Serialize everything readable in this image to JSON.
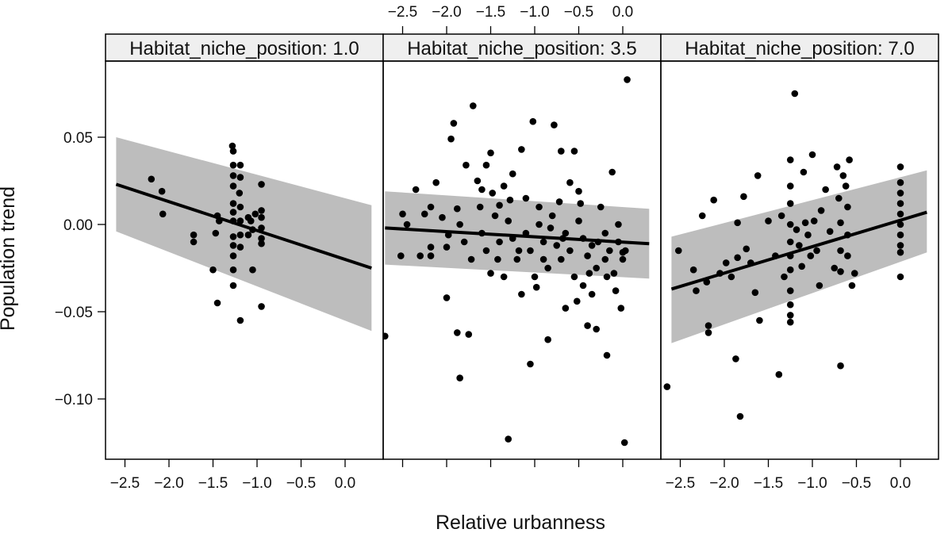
{
  "chart_data": {
    "type": "scatter",
    "layout": "lattice 3 panels side by side, shared y axis",
    "xlabel": "Relative urbanness",
    "ylabel": "Population trend",
    "xlim": [
      -2.85,
      0.45
    ],
    "ylim": [
      -0.135,
      0.095
    ],
    "x_ticks": [
      -2.5,
      -2.0,
      -1.5,
      -1.0,
      -0.5,
      0.0
    ],
    "x_tick_labels": [
      "−2.5",
      "−2.0",
      "−1.5",
      "−1.0",
      "−0.5",
      "0.0"
    ],
    "y_ticks": [
      0.05,
      0.0,
      -0.05,
      -0.1
    ],
    "y_tick_labels": [
      "0.05",
      "0.00",
      "−0.05",
      "−0.10"
    ],
    "panels": [
      {
        "strip": "Habitat_niche_position: 1.0",
        "fit": {
          "x": [
            -2.6,
            0.3
          ],
          "y": [
            0.023,
            -0.025
          ]
        },
        "band": {
          "x": [
            -2.6,
            0.3
          ],
          "lower": [
            -0.004,
            -0.061
          ],
          "upper": [
            0.05,
            0.011
          ]
        },
        "points": [
          [
            -2.2,
            0.026
          ],
          [
            -2.08,
            0.019
          ],
          [
            -2.07,
            0.006
          ],
          [
            -1.72,
            -0.006
          ],
          [
            -1.72,
            -0.01
          ],
          [
            -1.5,
            -0.026
          ],
          [
            -1.47,
            -0.005
          ],
          [
            -1.45,
            0.005
          ],
          [
            -1.45,
            -0.045
          ],
          [
            -1.43,
            0.002
          ],
          [
            -1.28,
            0.045
          ],
          [
            -1.27,
            0.042
          ],
          [
            -1.27,
            0.034
          ],
          [
            -1.27,
            0.028
          ],
          [
            -1.27,
            0.022
          ],
          [
            -1.27,
            0.012
          ],
          [
            -1.27,
            0.007
          ],
          [
            -1.27,
            0.002
          ],
          [
            -1.27,
            -0.007
          ],
          [
            -1.27,
            -0.012
          ],
          [
            -1.27,
            -0.018
          ],
          [
            -1.27,
            -0.026
          ],
          [
            -1.27,
            -0.035
          ],
          [
            -1.2,
            0.018
          ],
          [
            -1.19,
            0.034
          ],
          [
            -1.19,
            0.027
          ],
          [
            -1.19,
            0.01
          ],
          [
            -1.19,
            0.002
          ],
          [
            -1.19,
            -0.006
          ],
          [
            -1.19,
            -0.013
          ],
          [
            -1.19,
            -0.055
          ],
          [
            -1.1,
            0.004
          ],
          [
            -1.1,
            -0.006
          ],
          [
            -1.07,
            0.002
          ],
          [
            -1.05,
            -0.003
          ],
          [
            -1.05,
            -0.026
          ],
          [
            -1.02,
            0.006
          ],
          [
            -0.95,
            0.023
          ],
          [
            -0.95,
            0.008
          ],
          [
            -0.95,
            0.004
          ],
          [
            -0.95,
            -0.002
          ],
          [
            -0.95,
            -0.008
          ],
          [
            -0.95,
            -0.011
          ],
          [
            -0.95,
            -0.047
          ]
        ]
      },
      {
        "strip": "Habitat_niche_position: 3.5",
        "fit": {
          "x": [
            -2.7,
            0.3
          ],
          "y": [
            -0.002,
            -0.011
          ]
        },
        "band": {
          "x": [
            -2.7,
            0.3
          ],
          "lower": [
            -0.023,
            -0.031
          ],
          "upper": [
            0.019,
            0.009
          ]
        },
        "points": [
          [
            -2.7,
            -0.064
          ],
          [
            -2.45,
            0.0
          ],
          [
            -2.5,
            0.006
          ],
          [
            -2.52,
            -0.018
          ],
          [
            -2.35,
            0.02
          ],
          [
            -2.25,
            0.006
          ],
          [
            -2.18,
            0.01
          ],
          [
            -2.18,
            -0.013
          ],
          [
            -2.18,
            -0.018
          ],
          [
            -2.12,
            0.024
          ],
          [
            -2.0,
            -0.013
          ],
          [
            -2.0,
            -0.042
          ],
          [
            -1.95,
            0.049
          ],
          [
            -1.92,
            0.058
          ],
          [
            -1.88,
            0.009
          ],
          [
            -1.88,
            -0.062
          ],
          [
            -1.85,
            -0.088
          ],
          [
            -1.78,
            0.034
          ],
          [
            -1.75,
            -0.063
          ],
          [
            -1.7,
            0.068
          ],
          [
            -1.65,
            0.025
          ],
          [
            -1.6,
            0.02
          ],
          [
            -1.55,
            0.034
          ],
          [
            -1.5,
            0.041
          ],
          [
            -1.48,
            0.018
          ],
          [
            -1.4,
            0.011
          ],
          [
            -1.35,
            0.022
          ],
          [
            -1.3,
            -0.123
          ],
          [
            -1.25,
            0.029
          ],
          [
            -1.15,
            0.043
          ],
          [
            -1.1,
            0.015
          ],
          [
            -1.05,
            -0.08
          ],
          [
            -1.02,
            0.059
          ],
          [
            -0.95,
            0.01
          ],
          [
            -0.9,
            -0.02
          ],
          [
            -0.85,
            -0.066
          ],
          [
            -0.78,
            0.057
          ],
          [
            -0.72,
            0.013
          ],
          [
            -0.7,
            0.042
          ],
          [
            -0.65,
            -0.048
          ],
          [
            -0.6,
            0.024
          ],
          [
            -0.55,
            0.042
          ],
          [
            -0.5,
            0.019
          ],
          [
            -0.45,
            -0.035
          ],
          [
            -0.4,
            -0.058
          ],
          [
            -0.35,
            -0.04
          ],
          [
            -0.3,
            -0.06
          ],
          [
            -0.25,
            0.01
          ],
          [
            -0.2,
            -0.02
          ],
          [
            -0.18,
            -0.075
          ],
          [
            -0.12,
            0.03
          ],
          [
            -0.05,
            0.0
          ],
          [
            0.0,
            -0.016
          ],
          [
            0.02,
            -0.125
          ],
          [
            0.05,
            0.083
          ],
          [
            -1.85,
            0.0
          ],
          [
            -1.8,
            -0.01
          ],
          [
            -1.72,
            -0.02
          ],
          [
            -1.6,
            -0.005
          ],
          [
            -1.55,
            -0.015
          ],
          [
            -1.5,
            -0.028
          ],
          [
            -1.45,
            0.005
          ],
          [
            -1.4,
            -0.01
          ],
          [
            -1.35,
            -0.03
          ],
          [
            -1.3,
            0.002
          ],
          [
            -1.25,
            -0.008
          ],
          [
            -1.2,
            -0.02
          ],
          [
            -1.15,
            -0.04
          ],
          [
            -1.1,
            -0.005
          ],
          [
            -1.05,
            -0.015
          ],
          [
            -1.0,
            -0.03
          ],
          [
            -0.95,
            0.0
          ],
          [
            -0.9,
            -0.01
          ],
          [
            -0.85,
            -0.025
          ],
          [
            -0.8,
            0.005
          ],
          [
            -0.75,
            -0.012
          ],
          [
            -0.7,
            -0.02
          ],
          [
            -0.65,
            -0.005
          ],
          [
            -0.6,
            -0.015
          ],
          [
            -0.55,
            -0.03
          ],
          [
            -0.5,
            0.002
          ],
          [
            -0.45,
            -0.008
          ],
          [
            -0.4,
            -0.018
          ],
          [
            -0.35,
            -0.012
          ],
          [
            -0.3,
            -0.025
          ],
          [
            -0.2,
            -0.005
          ],
          [
            -0.15,
            -0.015
          ],
          [
            -0.1,
            -0.028
          ],
          [
            -0.05,
            -0.01
          ],
          [
            0.0,
            -0.02
          ],
          [
            0.03,
            -0.015
          ],
          [
            -2.3,
            -0.018
          ],
          [
            -2.05,
            0.004
          ],
          [
            -1.98,
            -0.006
          ],
          [
            -1.62,
            0.01
          ],
          [
            -1.42,
            -0.02
          ],
          [
            -1.28,
            0.014
          ],
          [
            -1.18,
            -0.015
          ],
          [
            -0.98,
            -0.036
          ],
          [
            -0.82,
            -0.002
          ],
          [
            -0.68,
            -0.008
          ],
          [
            -0.52,
            -0.044
          ],
          [
            -0.48,
            0.012
          ],
          [
            -0.38,
            -0.028
          ],
          [
            -0.28,
            -0.01
          ],
          [
            -0.18,
            -0.03
          ],
          [
            -0.08,
            -0.038
          ],
          [
            -0.02,
            -0.048
          ]
        ]
      },
      {
        "strip": "Habitat_niche_position: 7.0",
        "fit": {
          "x": [
            -2.6,
            0.3
          ],
          "y": [
            -0.037,
            0.007
          ]
        },
        "band": {
          "x": [
            -2.6,
            0.3
          ],
          "lower": [
            -0.068,
            -0.016
          ],
          "upper": [
            -0.007,
            0.031
          ]
        },
        "points": [
          [
            -2.65,
            -0.093
          ],
          [
            -2.52,
            -0.015
          ],
          [
            -2.35,
            -0.026
          ],
          [
            -2.32,
            -0.038
          ],
          [
            -2.25,
            0.005
          ],
          [
            -2.2,
            -0.033
          ],
          [
            -2.18,
            -0.058
          ],
          [
            -2.18,
            -0.062
          ],
          [
            -2.12,
            0.014
          ],
          [
            -2.05,
            -0.028
          ],
          [
            -1.98,
            -0.022
          ],
          [
            -1.92,
            -0.03
          ],
          [
            -1.87,
            -0.077
          ],
          [
            -1.85,
            0.001
          ],
          [
            -1.85,
            -0.019
          ],
          [
            -1.82,
            -0.11
          ],
          [
            -1.78,
            0.016
          ],
          [
            -1.75,
            -0.014
          ],
          [
            -1.7,
            -0.022
          ],
          [
            -1.65,
            -0.039
          ],
          [
            -1.62,
            0.028
          ],
          [
            -1.6,
            -0.055
          ],
          [
            -1.5,
            0.002
          ],
          [
            -1.42,
            -0.018
          ],
          [
            -1.38,
            -0.086
          ],
          [
            -1.35,
            0.005
          ],
          [
            -1.32,
            -0.03
          ],
          [
            -1.25,
            0.037
          ],
          [
            -1.25,
            0.022
          ],
          [
            -1.25,
            0.012
          ],
          [
            -1.25,
            0.0
          ],
          [
            -1.25,
            -0.01
          ],
          [
            -1.25,
            -0.018
          ],
          [
            -1.25,
            -0.026
          ],
          [
            -1.25,
            -0.038
          ],
          [
            -1.25,
            -0.046
          ],
          [
            -1.25,
            -0.052
          ],
          [
            -1.25,
            -0.056
          ],
          [
            -1.2,
            0.075
          ],
          [
            -1.18,
            -0.003
          ],
          [
            -1.15,
            -0.012
          ],
          [
            -1.12,
            -0.024
          ],
          [
            -1.1,
            0.03
          ],
          [
            -1.08,
            0.001
          ],
          [
            -1.05,
            -0.006
          ],
          [
            -1.02,
            -0.018
          ],
          [
            -1.0,
            0.04
          ],
          [
            -0.98,
            0.002
          ],
          [
            -0.95,
            -0.015
          ],
          [
            -0.92,
            -0.035
          ],
          [
            -0.9,
            0.008
          ],
          [
            -0.85,
            0.02
          ],
          [
            -0.8,
            -0.004
          ],
          [
            -0.75,
            -0.025
          ],
          [
            -0.72,
            0.033
          ],
          [
            -0.7,
            0.015
          ],
          [
            -0.68,
            0.001
          ],
          [
            -0.68,
            -0.015
          ],
          [
            -0.68,
            -0.027
          ],
          [
            -0.68,
            -0.081
          ],
          [
            -0.65,
            0.028
          ],
          [
            -0.62,
            0.022
          ],
          [
            -0.6,
            0.01
          ],
          [
            -0.6,
            -0.006
          ],
          [
            -0.6,
            -0.018
          ],
          [
            -0.58,
            0.037
          ],
          [
            -0.55,
            -0.035
          ],
          [
            -0.52,
            -0.028
          ],
          [
            0.0,
            0.033
          ],
          [
            0.0,
            0.024
          ],
          [
            0.0,
            0.018
          ],
          [
            0.0,
            0.012
          ],
          [
            0.0,
            0.006
          ],
          [
            0.0,
            0.0
          ],
          [
            0.0,
            -0.006
          ],
          [
            0.0,
            -0.012
          ],
          [
            0.0,
            -0.016
          ],
          [
            0.0,
            -0.03
          ]
        ]
      }
    ]
  }
}
